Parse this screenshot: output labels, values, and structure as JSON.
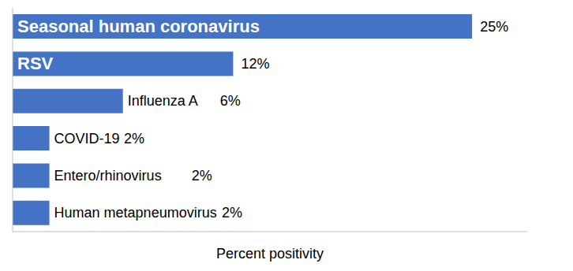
{
  "chart_data": {
    "type": "bar",
    "orientation": "horizontal",
    "xlabel": "Percent positivity",
    "categories": [
      "Seasonal human coronavirus",
      "RSV",
      "Influenza A",
      "COVID-19",
      "Entero/rhinovirus",
      "Human metapneumovirus"
    ],
    "values": [
      25,
      12,
      6,
      2,
      2,
      2
    ],
    "value_labels": [
      "25%",
      "12%",
      "6%",
      "2%",
      "2%",
      "2%"
    ],
    "color": "#4472c4",
    "xlim": [
      0,
      28
    ],
    "data_labels": true,
    "tick_labels": "y",
    "grid": false
  }
}
